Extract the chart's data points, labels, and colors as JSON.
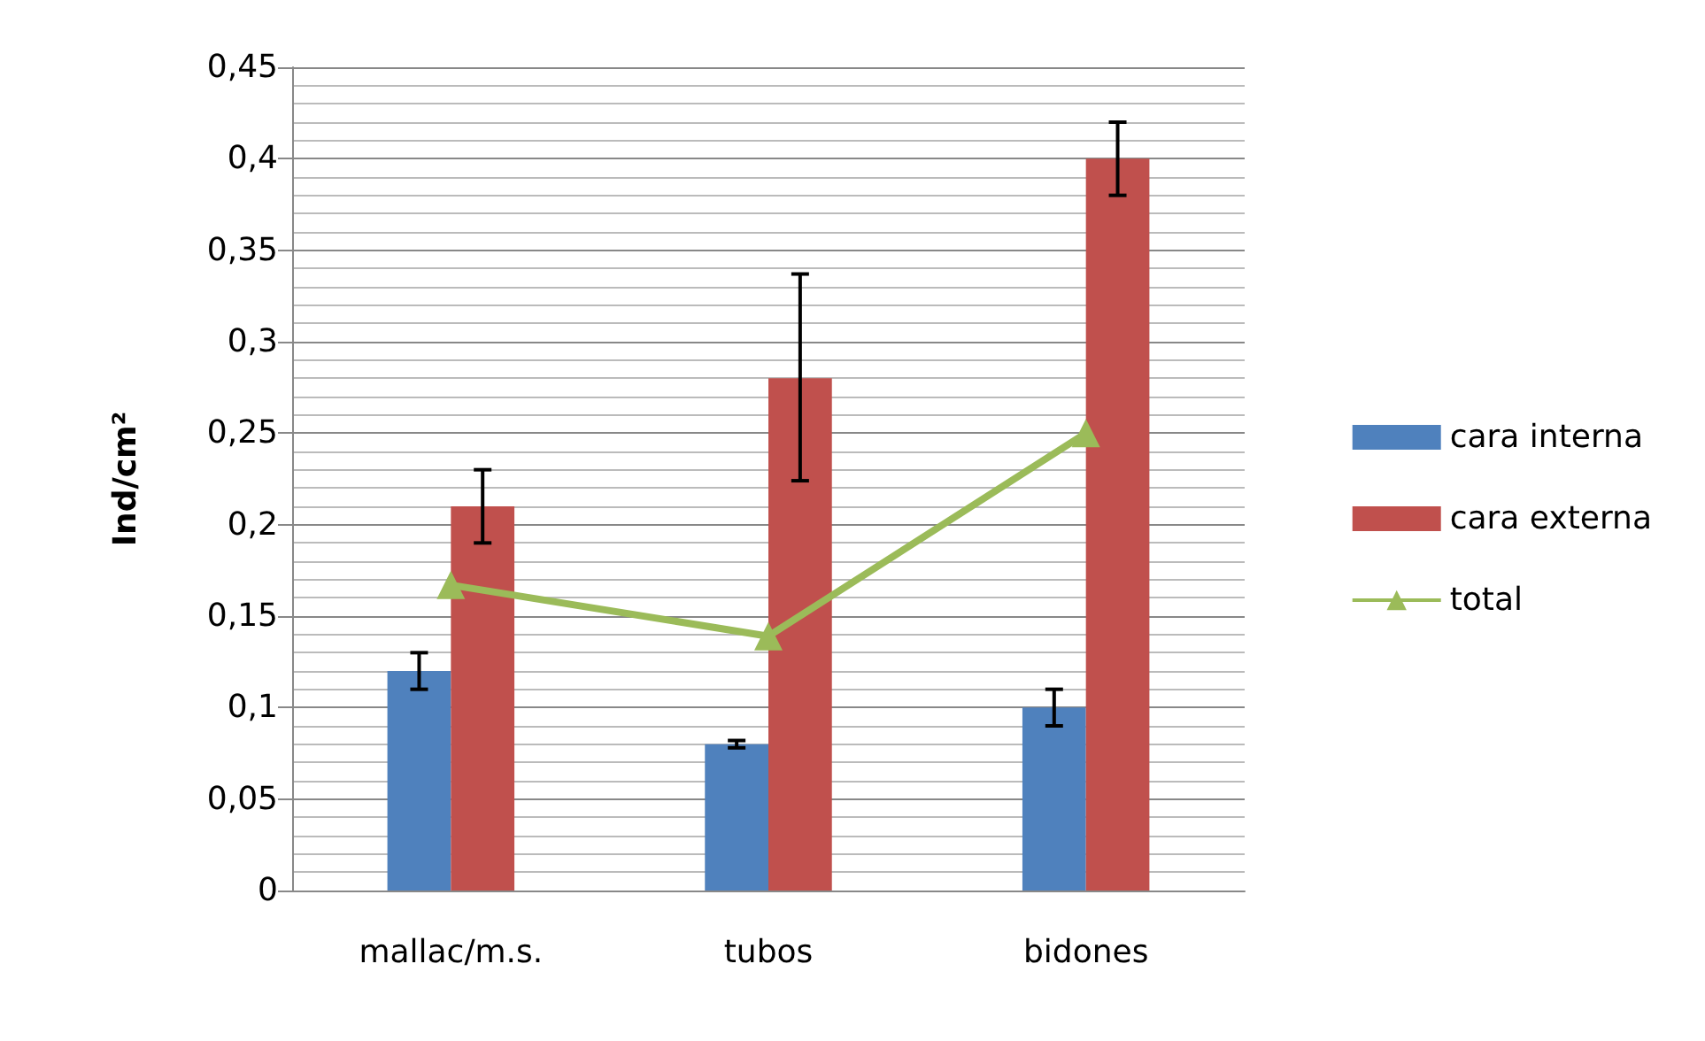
{
  "chart_data": {
    "type": "bar",
    "ylabel": "Ind/cm²",
    "categories": [
      "mallac/m.s.",
      "tubos",
      "bidones"
    ],
    "series": [
      {
        "name": "cara interna",
        "color": "#4f81bd",
        "values": [
          0.12,
          0.08,
          0.1
        ],
        "errors": [
          0.01,
          0.002,
          0.01
        ]
      },
      {
        "name": "cara externa",
        "color": "#c0504d",
        "values": [
          0.21,
          0.28,
          0.4
        ],
        "errors": [
          0.02,
          [
            0.224,
            0.337
          ],
          0.02
        ]
      },
      {
        "name": "total",
        "type": "line",
        "color": "#9bbb59",
        "marker": "triangle",
        "values": [
          0.167,
          0.139,
          0.25
        ]
      }
    ],
    "ylim": [
      0,
      0.45
    ],
    "yticks": [
      {
        "value": 0,
        "label": "0"
      },
      {
        "value": 0.05,
        "label": "0,05"
      },
      {
        "value": 0.1,
        "label": "0,1"
      },
      {
        "value": 0.15,
        "label": "0,15"
      },
      {
        "value": 0.2,
        "label": "0,2"
      },
      {
        "value": 0.25,
        "label": "0,25"
      },
      {
        "value": 0.3,
        "label": "0,3"
      },
      {
        "value": 0.35,
        "label": "0,35"
      },
      {
        "value": 0.4,
        "label": "0,4"
      },
      {
        "value": 0.45,
        "label": "0,45"
      }
    ],
    "grid": true,
    "legend": "right"
  }
}
